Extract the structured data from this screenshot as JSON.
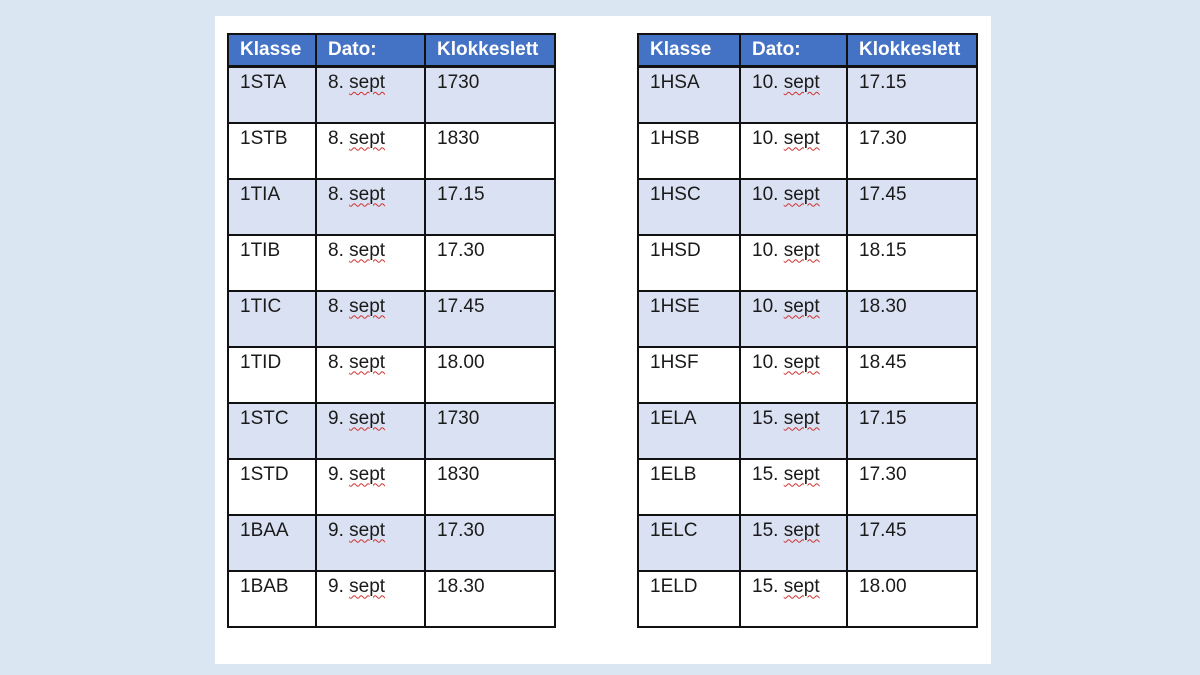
{
  "headers": [
    "Klasse",
    "Dato:",
    "Klokkeslett"
  ],
  "left_table": [
    {
      "klasse": "1STA",
      "dag": "8.",
      "mnd": "sept",
      "tid": "1730"
    },
    {
      "klasse": "1STB",
      "dag": "8.",
      "mnd": "sept",
      "tid": "1830"
    },
    {
      "klasse": "1TIA",
      "dag": "8.",
      "mnd": "sept",
      "tid": "17.15"
    },
    {
      "klasse": "1TIB",
      "dag": "8.",
      "mnd": "sept",
      "tid": "17.30"
    },
    {
      "klasse": "1TIC",
      "dag": "8.",
      "mnd": "sept",
      "tid": "17.45"
    },
    {
      "klasse": "1TID",
      "dag": "8.",
      "mnd": "sept",
      "tid": "18.00"
    },
    {
      "klasse": "1STC",
      "dag": "9.",
      "mnd": "sept",
      "tid": "1730"
    },
    {
      "klasse": "1STD",
      "dag": "9.",
      "mnd": "sept",
      "tid": "1830"
    },
    {
      "klasse": "1BAA",
      "dag": "9.",
      "mnd": "sept",
      "tid": "17.30"
    },
    {
      "klasse": "1BAB",
      "dag": "9.",
      "mnd": "sept",
      "tid": "18.30"
    }
  ],
  "right_table": [
    {
      "klasse": "1HSA",
      "dag": "10.",
      "mnd": "sept",
      "tid": "17.15"
    },
    {
      "klasse": "1HSB",
      "dag": "10.",
      "mnd": "sept",
      "tid": "17.30"
    },
    {
      "klasse": "1HSC",
      "dag": "10.",
      "mnd": "sept",
      "tid": "17.45"
    },
    {
      "klasse": "1HSD",
      "dag": "10.",
      "mnd": "sept",
      "tid": "18.15"
    },
    {
      "klasse": "1HSE",
      "dag": "10.",
      "mnd": "sept",
      "tid": "18.30"
    },
    {
      "klasse": "1HSF",
      "dag": "10.",
      "mnd": "sept",
      "tid": "18.45"
    },
    {
      "klasse": "1ELA",
      "dag": "15.",
      "mnd": "sept",
      "tid": "17.15"
    },
    {
      "klasse": "1ELB",
      "dag": "15.",
      "mnd": "sept",
      "tid": "17.30"
    },
    {
      "klasse": "1ELC",
      "dag": "15.",
      "mnd": "sept",
      "tid": "17.45"
    },
    {
      "klasse": "1ELD",
      "dag": "15.",
      "mnd": "sept",
      "tid": "18.00"
    }
  ],
  "colors": {
    "header_bg": "#4472c4",
    "alt_row_bg": "#d9e1f2",
    "page_bg": "#dbe6f3",
    "spellcheck_underline": "#d0312d"
  }
}
